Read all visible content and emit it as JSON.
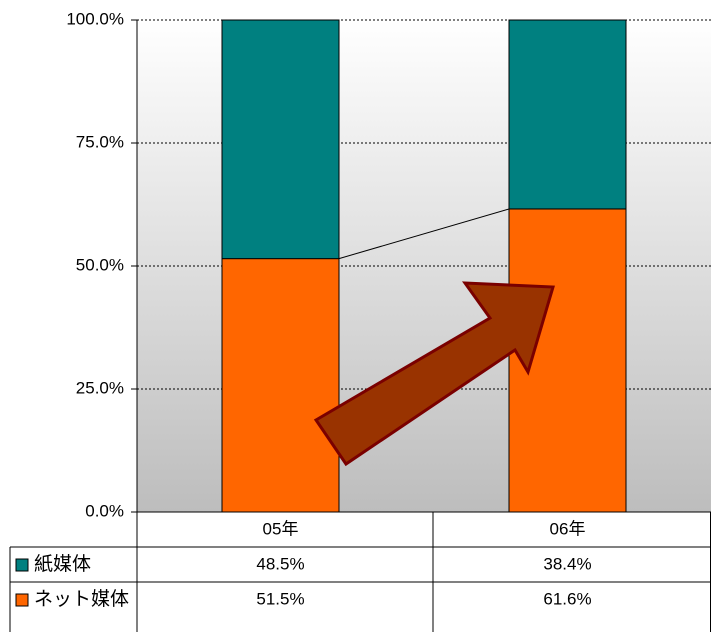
{
  "chart_data": {
    "type": "stacked_bar",
    "categories": [
      "05年",
      "06年"
    ],
    "series": [
      {
        "name": "紙媒体",
        "color": "#008080",
        "values": [
          48.5,
          38.4
        ],
        "value_labels": [
          "48.5%",
          "38.4%"
        ]
      },
      {
        "name": "ネット媒体",
        "color": "#ff6600",
        "values": [
          51.5,
          61.6
        ],
        "value_labels": [
          "51.5%",
          "61.6%"
        ]
      }
    ],
    "ylim": [
      0,
      100
    ],
    "yticks": [
      {
        "value": 0,
        "label": "0.0%"
      },
      {
        "value": 25,
        "label": "25.0%"
      },
      {
        "value": 50,
        "label": "50.0%"
      },
      {
        "value": 75,
        "label": "75.0%"
      },
      {
        "value": 100,
        "label": "100.0%"
      }
    ],
    "grid": true
  }
}
